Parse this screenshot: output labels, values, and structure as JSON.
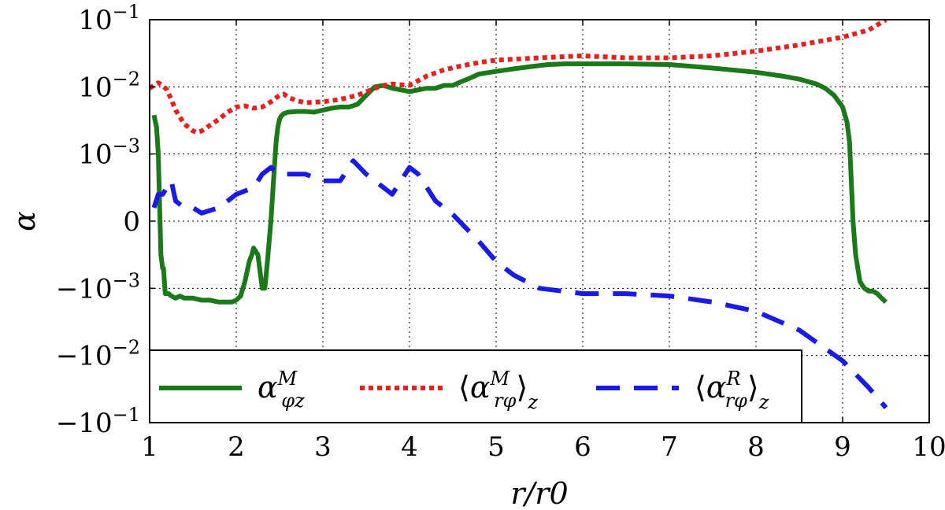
{
  "chart_data": {
    "type": "line",
    "xlabel": "r/r0",
    "ylabel": "α",
    "xlim": [
      1,
      10
    ],
    "yscale": "symlog",
    "symlog_linthresh": 0.001,
    "ylim": [
      -0.1,
      0.1
    ],
    "x_ticks": [
      1,
      2,
      3,
      4,
      5,
      6,
      7,
      8,
      9,
      10
    ],
    "y_ticks": [
      {
        "value": 0.1,
        "base": "10",
        "exp": "−1"
      },
      {
        "value": 0.01,
        "base": "10",
        "exp": "−2"
      },
      {
        "value": 0.001,
        "base": "10",
        "exp": "−3"
      },
      {
        "value": 0,
        "base": "0",
        "exp": ""
      },
      {
        "value": -0.001,
        "base": "−10",
        "exp": "−3"
      },
      {
        "value": -0.01,
        "base": "−10",
        "exp": "−2"
      },
      {
        "value": -0.1,
        "base": "−10",
        "exp": "−1"
      }
    ],
    "grid": true,
    "legend_position": "lower-left",
    "series": [
      {
        "name": "α^M_φz",
        "legend_main": "α",
        "legend_sup": "M",
        "legend_sub": "φz",
        "color": "#1a7a1a",
        "style": "solid",
        "x": [
          1.05,
          1.08,
          1.1,
          1.12,
          1.13,
          1.15,
          1.16,
          1.18,
          1.2,
          1.22,
          1.25,
          1.3,
          1.35,
          1.4,
          1.5,
          1.6,
          1.7,
          1.8,
          1.9,
          1.95,
          2.0,
          2.05,
          2.1,
          2.15,
          2.18,
          2.2,
          2.25,
          2.28,
          2.3,
          2.33,
          2.36,
          2.4,
          2.43,
          2.46,
          2.48,
          2.5,
          2.52,
          2.55,
          2.6,
          2.7,
          2.8,
          2.9,
          3.0,
          3.1,
          3.2,
          3.3,
          3.4,
          3.5,
          3.6,
          3.7,
          3.8,
          3.9,
          4.0,
          4.1,
          4.2,
          4.3,
          4.4,
          4.5,
          4.6,
          4.7,
          4.8,
          5.0,
          5.2,
          5.4,
          5.6,
          5.8,
          6.0,
          6.5,
          7.0,
          7.5,
          8.0,
          8.3,
          8.5,
          8.7,
          8.8,
          8.9,
          9.0,
          9.05,
          9.08,
          9.1,
          9.12,
          9.15,
          9.2,
          9.25,
          9.3,
          9.35,
          9.4,
          9.45,
          9.5
        ],
        "y": [
          0.0038,
          0.0025,
          0.001,
          0.0,
          -0.0005,
          -0.0007,
          -0.0007,
          -0.0012,
          -0.0012,
          -0.0012,
          -0.0013,
          -0.0014,
          -0.0013,
          -0.0014,
          -0.0014,
          -0.0015,
          -0.0015,
          -0.0016,
          -0.0016,
          -0.0016,
          -0.0015,
          -0.0013,
          -0.0009,
          -0.0006,
          -0.0005,
          -0.0004,
          -0.0005,
          -0.0008,
          -0.001,
          -0.001,
          -0.0006,
          0.0,
          0.0006,
          0.0015,
          0.0025,
          0.0033,
          0.0037,
          0.004,
          0.0042,
          0.0043,
          0.0043,
          0.0042,
          0.0045,
          0.0048,
          0.005,
          0.005,
          0.0055,
          0.0075,
          0.01,
          0.0105,
          0.0095,
          0.009,
          0.0085,
          0.009,
          0.0095,
          0.0095,
          0.0105,
          0.0105,
          0.012,
          0.0135,
          0.0155,
          0.017,
          0.0185,
          0.02,
          0.0215,
          0.022,
          0.022,
          0.022,
          0.0215,
          0.019,
          0.0165,
          0.0145,
          0.013,
          0.011,
          0.0095,
          0.0075,
          0.005,
          0.003,
          0.0015,
          0.0006,
          0.0,
          -0.0005,
          -0.0009,
          -0.001,
          -0.0011,
          -0.0011,
          -0.0012,
          -0.0014,
          -0.0016
        ]
      },
      {
        "name": "⟨α^M_rφ⟩_z",
        "legend_main": "α",
        "legend_sup": "M",
        "legend_sub": "rφ",
        "color": "#e82020",
        "style": "dotted",
        "x": [
          1.0,
          1.05,
          1.1,
          1.15,
          1.2,
          1.25,
          1.3,
          1.4,
          1.5,
          1.55,
          1.6,
          1.7,
          1.8,
          1.9,
          2.0,
          2.1,
          2.2,
          2.3,
          2.4,
          2.5,
          2.55,
          2.6,
          2.7,
          2.8,
          3.0,
          3.2,
          3.4,
          3.6,
          3.7,
          3.8,
          4.0,
          4.2,
          4.4,
          4.6,
          4.8,
          5.0,
          5.5,
          6.0,
          6.5,
          7.0,
          7.5,
          8.0,
          8.5,
          9.0,
          9.3,
          9.5
        ],
        "y": [
          0.0095,
          0.0105,
          0.0115,
          0.0105,
          0.009,
          0.0065,
          0.0045,
          0.0028,
          0.0022,
          0.0021,
          0.0022,
          0.0027,
          0.0033,
          0.0042,
          0.005,
          0.0052,
          0.0048,
          0.005,
          0.006,
          0.0075,
          0.0078,
          0.007,
          0.0062,
          0.0058,
          0.006,
          0.0065,
          0.0075,
          0.0095,
          0.0105,
          0.011,
          0.0105,
          0.0145,
          0.018,
          0.0205,
          0.023,
          0.025,
          0.027,
          0.029,
          0.027,
          0.027,
          0.029,
          0.034,
          0.042,
          0.055,
          0.07,
          0.1
        ]
      },
      {
        "name": "⟨α^R_rφ⟩_z",
        "legend_main": "α",
        "legend_sup": "R",
        "legend_sub": "rφ",
        "color": "#1a1ae8",
        "style": "dashed",
        "x": [
          1.05,
          1.1,
          1.15,
          1.2,
          1.25,
          1.3,
          1.4,
          1.5,
          1.6,
          1.8,
          2.0,
          2.2,
          2.3,
          2.4,
          2.5,
          2.6,
          2.8,
          3.0,
          3.2,
          3.35,
          3.5,
          3.7,
          3.8,
          3.9,
          4.0,
          4.1,
          4.2,
          4.3,
          4.5,
          4.8,
          5.0,
          5.2,
          5.5,
          6.0,
          6.5,
          7.0,
          7.5,
          8.0,
          8.5,
          9.0,
          9.3,
          9.5
        ],
        "y": [
          0.0002,
          0.0004,
          0.0004,
          0.0005,
          0.0006,
          0.0003,
          0.0002,
          0.0002,
          0.00012,
          0.0002,
          0.0004,
          0.0005,
          0.0007,
          0.0008,
          0.0007,
          0.0007,
          0.0007,
          0.0006,
          0.0006,
          0.0009,
          0.0007,
          0.0005,
          0.0004,
          0.0006,
          0.0008,
          0.0007,
          0.0005,
          0.0003,
          0.0001,
          -0.0003,
          -0.0006,
          -0.0008,
          -0.001,
          -0.0012,
          -0.0012,
          -0.0013,
          -0.0016,
          -0.0022,
          -0.0042,
          -0.012,
          -0.03,
          -0.06
        ]
      }
    ]
  }
}
